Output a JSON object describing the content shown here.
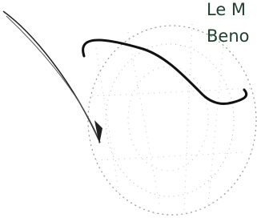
{
  "caption": {
    "line1": "Le M",
    "line2": "Beno"
  }
}
